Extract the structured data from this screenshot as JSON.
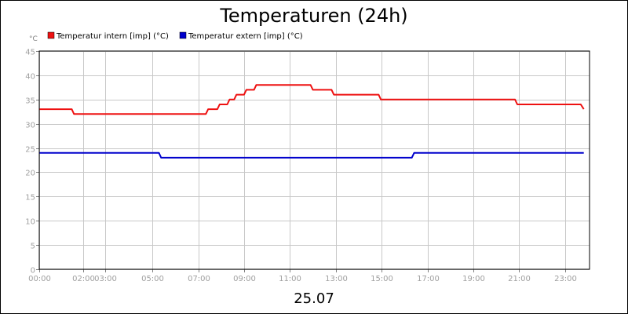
{
  "chart_data": {
    "type": "line",
    "title": "Temperaturen (24h)",
    "xlabel": "25.07",
    "ylabel": "",
    "y_unit": "°C",
    "ylim": [
      0,
      45
    ],
    "y_ticks": [
      0,
      5,
      10,
      15,
      20,
      25,
      30,
      35,
      40,
      45
    ],
    "xlim": [
      "00:00",
      "24:00"
    ],
    "x_tick_labels": [
      {
        "label": "00:00",
        "time": "00:00"
      },
      {
        "label": "02:00",
        "time": "01:56"
      },
      {
        "label": "03:00",
        "time": "02:53"
      },
      {
        "label": "05:00",
        "time": "04:56"
      },
      {
        "label": "07:00",
        "time": "06:56"
      },
      {
        "label": "09:00",
        "time": "08:56"
      },
      {
        "label": "11:00",
        "time": "10:56"
      },
      {
        "label": "13:00",
        "time": "12:56"
      },
      {
        "label": "15:00",
        "time": "14:56"
      },
      {
        "label": "17:00",
        "time": "16:56"
      },
      {
        "label": "19:00",
        "time": "18:56"
      },
      {
        "label": "21:00",
        "time": "20:56"
      },
      {
        "label": "23:00",
        "time": "22:56"
      }
    ],
    "grid": true,
    "legend_position": "top-left",
    "series": [
      {
        "name": "Temperatur intern [imp] (°C)",
        "color": "#ee1111",
        "points": [
          [
            "00:00",
            33
          ],
          [
            "01:25",
            33
          ],
          [
            "01:31",
            32
          ],
          [
            "07:16",
            32
          ],
          [
            "07:22",
            33
          ],
          [
            "07:46",
            33
          ],
          [
            "07:52",
            34
          ],
          [
            "08:12",
            34
          ],
          [
            "08:18",
            35
          ],
          [
            "08:30",
            35
          ],
          [
            "08:36",
            36
          ],
          [
            "08:56",
            36
          ],
          [
            "09:02",
            37
          ],
          [
            "09:22",
            37
          ],
          [
            "09:28",
            38
          ],
          [
            "11:50",
            38
          ],
          [
            "11:56",
            37
          ],
          [
            "12:45",
            37
          ],
          [
            "12:51",
            36
          ],
          [
            "14:48",
            36
          ],
          [
            "14:54",
            35
          ],
          [
            "20:45",
            35
          ],
          [
            "20:51",
            34
          ],
          [
            "23:37",
            34
          ],
          [
            "23:45",
            33
          ]
        ]
      },
      {
        "name": "Temperatur extern [imp] (°C)",
        "color": "#0000cc",
        "points": [
          [
            "00:00",
            24
          ],
          [
            "05:13",
            24
          ],
          [
            "05:19",
            23
          ],
          [
            "16:15",
            23
          ],
          [
            "16:21",
            24
          ],
          [
            "23:45",
            24
          ]
        ]
      }
    ]
  }
}
